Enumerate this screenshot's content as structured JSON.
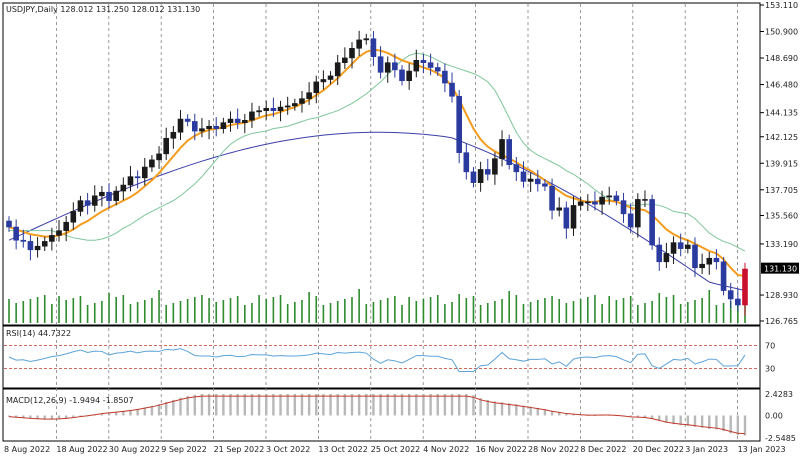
{
  "header": {
    "symbol_info": "USDJPY,Daily  128.012 131.250 128.012 131.130"
  },
  "price_axis": {
    "ticks": [
      "153.110",
      "150.900",
      "148.690",
      "146.480",
      "144.135",
      "142.125",
      "139.915",
      "137.705",
      "135.560",
      "133.190",
      "128.930",
      "126.765"
    ],
    "tick_values": [
      153.11,
      150.9,
      148.69,
      146.48,
      144.135,
      142.125,
      139.915,
      137.705,
      135.56,
      133.19,
      128.93,
      126.765
    ],
    "current_price_label": "131.130",
    "current_price": 131.13
  },
  "date_axis": {
    "labels": [
      "8 Aug 2022",
      "18 Aug 2022",
      "30 Aug 2022",
      "9 Sep 2022",
      "21 Sep 2022",
      "3 Oct 2022",
      "13 Oct 2022",
      "25 Oct 2022",
      "4 Nov 2022",
      "16 Nov 2022",
      "28 Nov 2022",
      "8 Dec 2022",
      "20 Dec 2022",
      "3 Jan 2023",
      "13 Jan 2023"
    ]
  },
  "rsi_panel": {
    "label": "RSI(14) 44.7322",
    "levels": [
      "70",
      "30"
    ],
    "level_values": [
      70,
      30
    ]
  },
  "macd_panel": {
    "label": "MACD(12,26,9) -1.9494 -1.8507",
    "ticks": [
      "2.4283",
      "0.00",
      "-2.5485"
    ],
    "tick_values": [
      2.4283,
      0,
      -2.5485
    ]
  },
  "colors": {
    "bull_candle": "#1a1a1a",
    "bear_candle": "#2b3a9e",
    "last_candle": "#c8102e",
    "ma_fast": "#f39c1e",
    "ma_slow": "#3b3fa8",
    "ma_mid": "#7fc79a",
    "ma_red_dotted": "#d43b3b",
    "volume": "#2e8b2e",
    "rsi_line": "#5da4d8",
    "rsi_levels": "#c0392b",
    "macd_hist": "#b8b8b8",
    "macd_signal": "#c0392b",
    "grid": "#808080"
  },
  "chart_data": {
    "type": "candlestick",
    "title": "USDJPY,Daily",
    "x_labels": [
      "8 Aug 2022",
      "18 Aug 2022",
      "30 Aug 2022",
      "9 Sep 2022",
      "21 Sep 2022",
      "3 Oct 2022",
      "13 Oct 2022",
      "25 Oct 2022",
      "4 Nov 2022",
      "16 Nov 2022",
      "28 Nov 2022",
      "8 Dec 2022",
      "20 Dec 2022",
      "3 Jan 2023",
      "13 Jan 2023"
    ],
    "close": [
      134.6,
      133.5,
      133.4,
      132.7,
      133.0,
      133.4,
      133.9,
      134.3,
      135.0,
      135.9,
      136.8,
      136.4,
      137.2,
      137.5,
      136.8,
      137.6,
      138.1,
      138.8,
      138.7,
      139.6,
      140.2,
      140.7,
      142.0,
      142.5,
      143.6,
      143.4,
      142.6,
      142.8,
      143.0,
      142.8,
      143.3,
      143.6,
      143.3,
      143.5,
      144.2,
      144.3,
      144.5,
      144.3,
      144.6,
      144.7,
      144.9,
      145.3,
      145.8,
      146.7,
      146.9,
      147.2,
      148.3,
      148.7,
      149.5,
      150.2,
      150.3,
      148.8,
      147.5,
      148.3,
      147.7,
      146.8,
      147.6,
      148.5,
      148.3,
      147.9,
      147.6,
      146.6,
      145.5,
      140.8,
      139.2,
      138.3,
      139.4,
      139.0,
      140.3,
      141.9,
      139.8,
      139.2,
      138.4,
      138.6,
      138.2,
      138.0,
      136.0,
      136.2,
      134.5,
      136.4,
      136.7,
      136.7,
      136.5,
      137.1,
      137.2,
      136.8,
      135.7,
      134.6,
      136.9,
      136.9,
      133.1,
      131.7,
      132.4,
      133.3,
      132.8,
      133.1,
      131.2,
      131.5,
      132.0,
      131.7,
      129.3,
      128.6,
      128.1,
      131.1
    ],
    "ma_fast_approx": [
      134.6,
      134.4,
      134.2,
      134.0,
      133.9,
      133.8,
      133.8,
      133.9,
      134.1,
      134.4,
      134.8,
      135.1,
      135.5,
      135.9,
      136.2,
      136.5,
      136.8,
      137.1,
      137.5,
      138.0,
      138.5,
      139.1,
      139.8,
      140.5,
      141.2,
      141.8,
      142.2,
      142.5,
      142.7,
      142.8,
      142.9,
      143.1,
      143.2,
      143.3,
      143.5,
      143.7,
      143.9,
      144.0,
      144.2,
      144.4,
      144.6,
      144.9,
      145.2,
      145.6,
      146.0,
      146.5,
      147.0,
      147.6,
      148.2,
      148.8,
      149.2,
      149.4,
      149.3,
      149.1,
      148.8,
      148.5,
      148.3,
      148.1,
      147.9,
      147.7,
      147.4,
      147.0,
      146.3,
      145.2,
      144.0,
      142.8,
      141.9,
      141.3,
      140.9,
      140.6,
      140.3,
      140.0,
      139.6,
      139.3,
      138.9,
      138.5,
      138.0,
      137.6,
      137.2,
      137.0,
      136.8,
      136.7,
      136.7,
      136.8,
      136.8,
      136.7,
      136.5,
      136.2,
      136.1,
      136.0,
      135.6,
      135.0,
      134.4,
      134.0,
      133.7,
      133.5,
      133.2,
      132.9,
      132.6,
      132.4,
      131.9,
      131.2,
      130.6,
      130.5
    ],
    "ylim": [
      126.765,
      153.11
    ],
    "rsi_level_lines": [
      70,
      30
    ],
    "macd_range": [
      -2.5485,
      2.4283
    ]
  }
}
